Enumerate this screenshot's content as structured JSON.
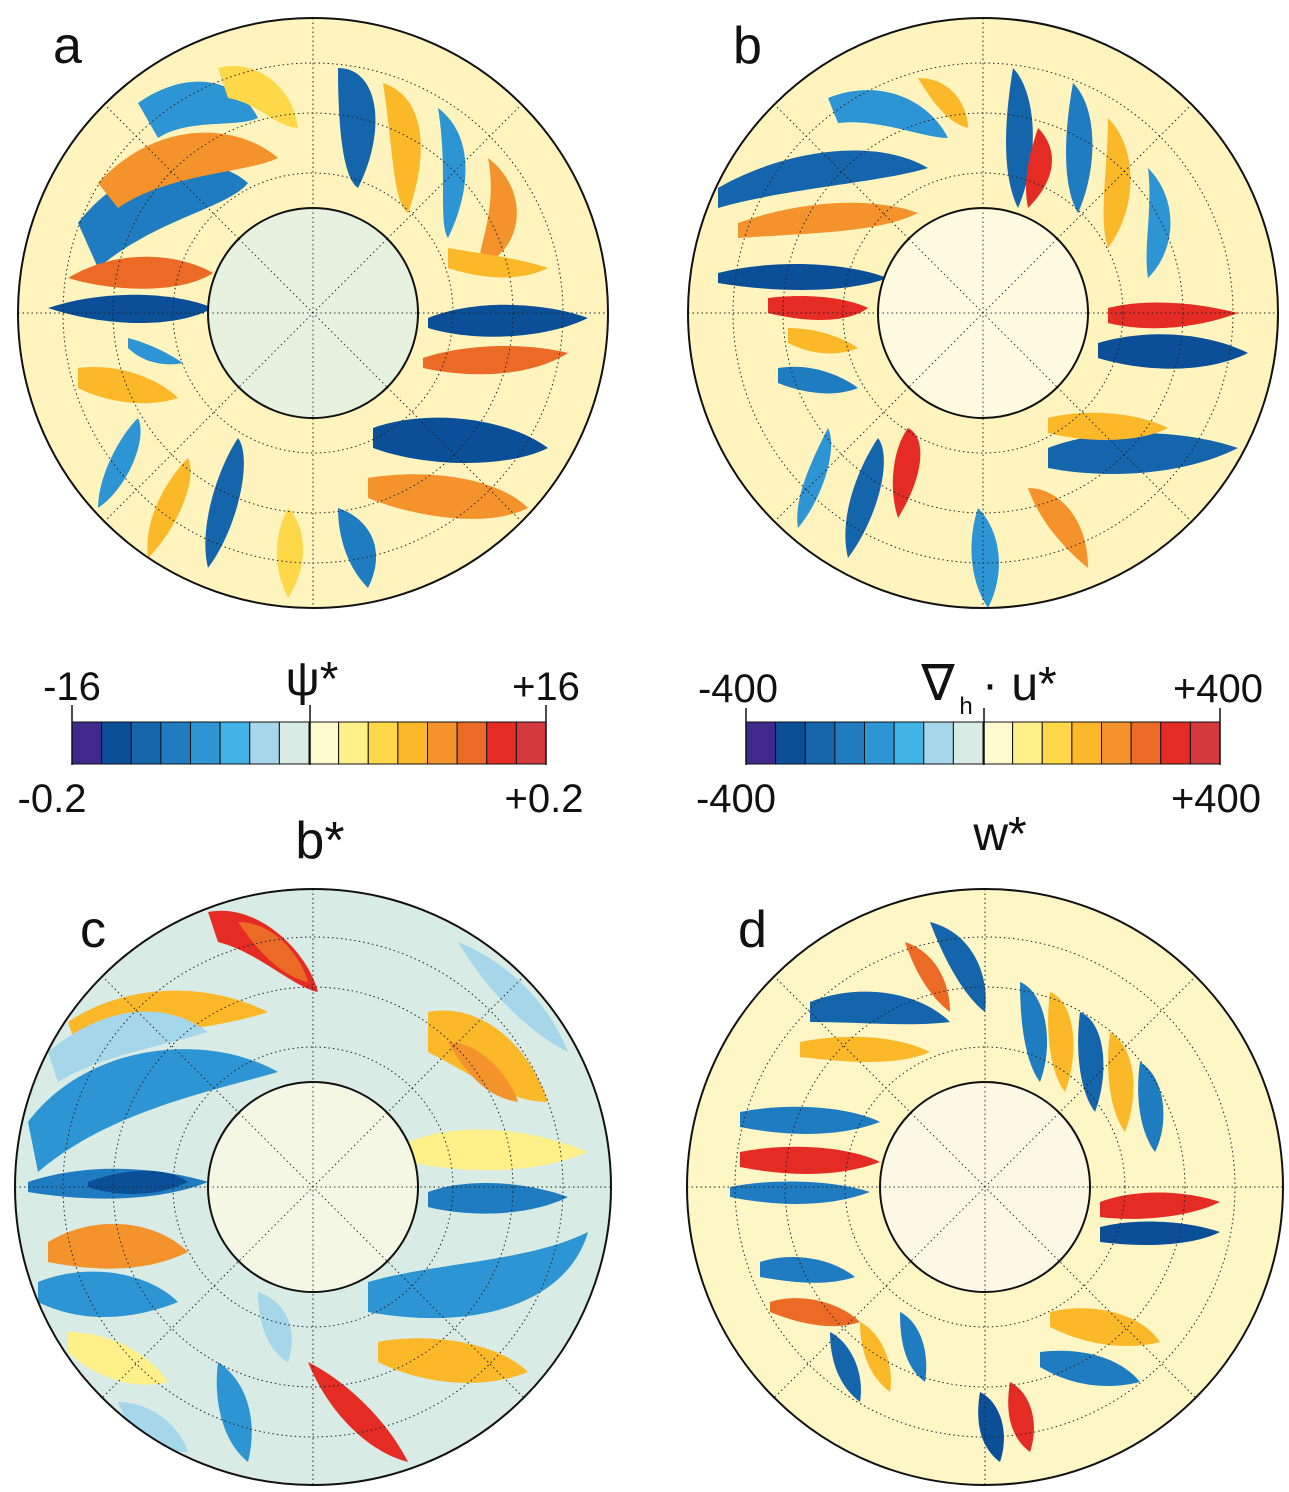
{
  "panels": [
    {
      "label": "a"
    },
    {
      "label": "b"
    },
    {
      "label": "c"
    },
    {
      "label": "d"
    }
  ],
  "colorbar_left": {
    "top_symbol": "ψ*",
    "top_min": "-16",
    "top_max": "+16",
    "bottom_symbol": "b*",
    "bottom_min": "-0.2",
    "bottom_max": "+0.2"
  },
  "colorbar_right": {
    "top_symbol_nabla": "∇",
    "top_symbol_sub": "h",
    "top_symbol_rest": "· u*",
    "top_min": "-400",
    "top_max": "+400",
    "bottom_symbol": "w*",
    "bottom_min": "-400",
    "bottom_max": "+400"
  },
  "palette": [
    "#3f2a8c",
    "#0b4f99",
    "#1565ad",
    "#1f7cc0",
    "#2d95d3",
    "#41b3e6",
    "#a6d6ea",
    "#d8ebe4",
    "#fff9cf",
    "#fff08a",
    "#ffd84a",
    "#fbb829",
    "#f4932b",
    "#eb6b26",
    "#e42b24",
    "#d4393d"
  ]
}
